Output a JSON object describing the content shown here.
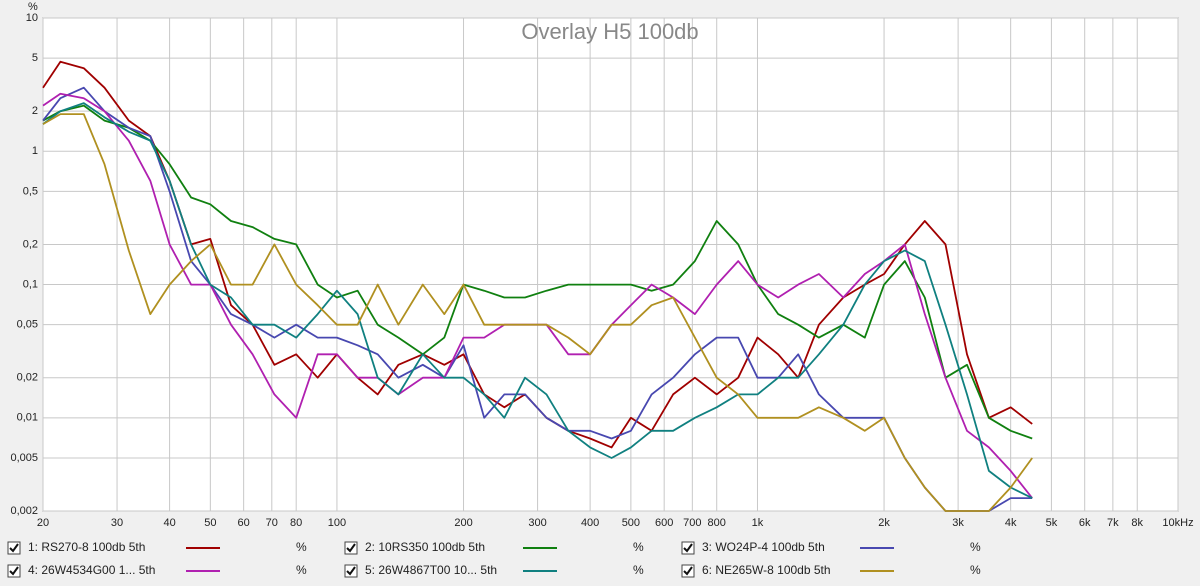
{
  "chart_data": {
    "type": "line",
    "title": "Overlay H5 100db",
    "ylabel": "%",
    "log_x": true,
    "log_y": true,
    "grid": true,
    "x": [
      20,
      22,
      25,
      28,
      32,
      36,
      40,
      45,
      50,
      56,
      63,
      71,
      80,
      90,
      100,
      112,
      125,
      140,
      160,
      180,
      200,
      224,
      250,
      280,
      315,
      355,
      400,
      450,
      500,
      560,
      630,
      710,
      800,
      900,
      1000,
      1120,
      1250,
      1400,
      1600,
      1800,
      2000,
      2240,
      2500,
      2800,
      3150,
      3550,
      4000,
      4500
    ],
    "xlim": [
      20,
      10000
    ],
    "xticks": [
      20,
      30,
      40,
      50,
      60,
      70,
      80,
      100,
      200,
      300,
      400,
      500,
      600,
      700,
      800,
      {
        "value": 1000,
        "label": "1k"
      },
      {
        "value": 2000,
        "label": "2k"
      },
      {
        "value": 3000,
        "label": "3k"
      },
      {
        "value": 4000,
        "label": "4k"
      },
      {
        "value": 5000,
        "label": "5k"
      },
      {
        "value": 6000,
        "label": "6k"
      },
      {
        "value": 7000,
        "label": "7k"
      },
      {
        "value": 8000,
        "label": "8k"
      },
      {
        "value": 10000,
        "label": "10kHz"
      }
    ],
    "ylim": [
      0.002,
      10
    ],
    "yticks": [
      {
        "value": 0.002,
        "label": "0,002"
      },
      {
        "value": 0.005,
        "label": "0,005"
      },
      {
        "value": 0.01,
        "label": "0,01"
      },
      {
        "value": 0.02,
        "label": "0,02"
      },
      {
        "value": 0.05,
        "label": "0,05"
      },
      {
        "value": 0.1,
        "label": "0,1"
      },
      {
        "value": 0.2,
        "label": "0,2"
      },
      {
        "value": 0.5,
        "label": "0,5"
      },
      1,
      2,
      5,
      10
    ],
    "series": [
      {
        "name": "1: RS270-8 100db 5th",
        "unit": "%",
        "color": "#a00000",
        "values": [
          3,
          4.7,
          4.2,
          3,
          1.7,
          1.3,
          0.6,
          0.2,
          0.22,
          0.07,
          0.05,
          0.025,
          0.03,
          0.02,
          0.03,
          0.02,
          0.015,
          0.025,
          0.03,
          0.025,
          0.03,
          0.015,
          0.012,
          0.015,
          0.01,
          0.008,
          0.007,
          0.006,
          0.01,
          0.008,
          0.015,
          0.02,
          0.015,
          0.02,
          0.04,
          0.03,
          0.02,
          0.05,
          0.08,
          0.1,
          0.12,
          0.2,
          0.3,
          0.2,
          0.03,
          0.01,
          0.012,
          0.009
        ]
      },
      {
        "name": "2: 10RS350 100db 5th",
        "unit": "%",
        "color": "#108010",
        "values": [
          1.7,
          2,
          2.2,
          1.7,
          1.5,
          1.2,
          0.8,
          0.45,
          0.4,
          0.3,
          0.27,
          0.22,
          0.2,
          0.1,
          0.08,
          0.09,
          0.05,
          0.04,
          0.03,
          0.04,
          0.1,
          0.09,
          0.08,
          0.08,
          0.09,
          0.1,
          0.1,
          0.1,
          0.1,
          0.09,
          0.1,
          0.15,
          0.3,
          0.2,
          0.1,
          0.06,
          0.05,
          0.04,
          0.05,
          0.04,
          0.1,
          0.15,
          0.08,
          0.02,
          0.025,
          0.01,
          0.008,
          0.007
        ]
      },
      {
        "name": "3: WO24P-4 100db 5th",
        "unit": "%",
        "color": "#4848b0",
        "values": [
          1.7,
          2.5,
          3,
          2,
          1.5,
          1.3,
          0.5,
          0.15,
          0.1,
          0.06,
          0.05,
          0.04,
          0.05,
          0.04,
          0.04,
          0.035,
          0.03,
          0.02,
          0.025,
          0.02,
          0.035,
          0.01,
          0.015,
          0.015,
          0.01,
          0.008,
          0.008,
          0.007,
          0.008,
          0.015,
          0.02,
          0.03,
          0.04,
          0.04,
          0.02,
          0.02,
          0.03,
          0.015,
          0.01,
          0.01,
          0.01,
          0.005,
          0.003,
          0.002,
          0.002,
          0.002,
          0.0025,
          0.0025
        ]
      },
      {
        "name": "4: 26W4534G00 1... 5th",
        "unit": "%",
        "color": "#b020b0",
        "values": [
          2.2,
          2.7,
          2.5,
          2,
          1.2,
          0.6,
          0.2,
          0.1,
          0.1,
          0.05,
          0.03,
          0.015,
          0.01,
          0.03,
          0.03,
          0.02,
          0.02,
          0.015,
          0.02,
          0.02,
          0.04,
          0.04,
          0.05,
          0.05,
          0.05,
          0.03,
          0.03,
          0.05,
          0.07,
          0.1,
          0.08,
          0.06,
          0.1,
          0.15,
          0.1,
          0.08,
          0.1,
          0.12,
          0.08,
          0.12,
          0.15,
          0.2,
          0.06,
          0.02,
          0.008,
          0.006,
          0.004,
          0.0025
        ]
      },
      {
        "name": "5: 26W4867T00 10... 5th",
        "unit": "%",
        "color": "#108080",
        "values": [
          1.6,
          2,
          2.3,
          1.8,
          1.4,
          1.2,
          0.6,
          0.2,
          0.1,
          0.08,
          0.05,
          0.05,
          0.04,
          0.06,
          0.09,
          0.06,
          0.02,
          0.015,
          0.03,
          0.02,
          0.02,
          0.015,
          0.01,
          0.02,
          0.015,
          0.008,
          0.006,
          0.005,
          0.006,
          0.008,
          0.008,
          0.01,
          0.012,
          0.015,
          0.015,
          0.02,
          0.02,
          0.03,
          0.05,
          0.1,
          0.15,
          0.18,
          0.15,
          0.05,
          0.015,
          0.004,
          0.003,
          0.0025
        ]
      },
      {
        "name": "6: NE265W-8 100db 5th",
        "unit": "%",
        "color": "#b09020",
        "values": [
          1.6,
          1.9,
          1.9,
          0.8,
          0.18,
          0.06,
          0.1,
          0.15,
          0.2,
          0.1,
          0.1,
          0.2,
          0.1,
          0.07,
          0.05,
          0.05,
          0.1,
          0.05,
          0.1,
          0.06,
          0.1,
          0.05,
          0.05,
          0.05,
          0.05,
          0.04,
          0.03,
          0.05,
          0.05,
          0.07,
          0.08,
          0.04,
          0.02,
          0.015,
          0.01,
          0.01,
          0.01,
          0.012,
          0.01,
          0.008,
          0.01,
          0.005,
          0.003,
          0.002,
          0.002,
          0.002,
          0.003,
          0.005
        ]
      }
    ]
  }
}
